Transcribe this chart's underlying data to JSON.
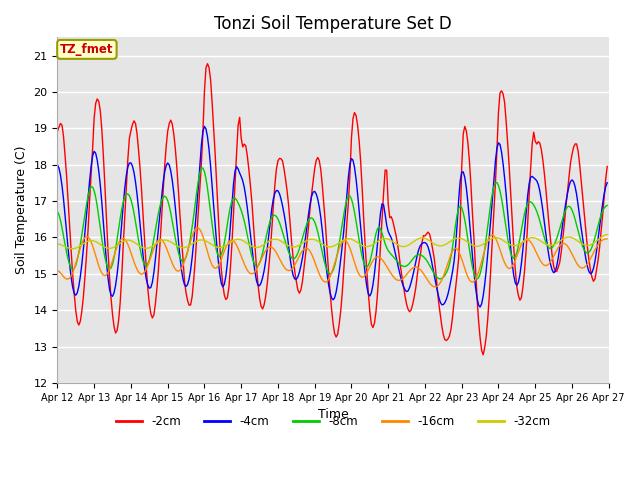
{
  "title": "Tonzi Soil Temperature Set D",
  "xlabel": "Time",
  "ylabel": "Soil Temperature (C)",
  "annotation": "TZ_fmet",
  "ylim": [
    12.0,
    21.5
  ],
  "yticks": [
    12.0,
    13.0,
    14.0,
    15.0,
    16.0,
    17.0,
    18.0,
    19.0,
    20.0,
    21.0
  ],
  "x_tick_labels": [
    "Apr 12",
    "Apr 13",
    "Apr 14",
    "Apr 15",
    "Apr 16",
    "Apr 17",
    "Apr 18",
    "Apr 19",
    "Apr 20",
    "Apr 21",
    "Apr 22",
    "Apr 23",
    "Apr 24",
    "Apr 25",
    "Apr 26",
    "Apr 27"
  ],
  "line_colors": [
    "#ff0000",
    "#0000ff",
    "#00cc00",
    "#ff8800",
    "#cccc00"
  ],
  "line_labels": [
    "-2cm",
    "-4cm",
    "-8cm",
    "-16cm",
    "-32cm"
  ],
  "background_color": "#e5e5e5",
  "title_fontsize": 12,
  "axis_label_fontsize": 9,
  "tick_fontsize": 8
}
